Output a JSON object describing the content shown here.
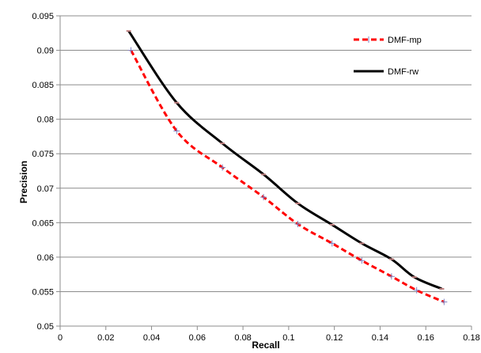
{
  "chart_data": {
    "type": "line",
    "title": "",
    "xlabel": "Recall",
    "ylabel": "Precision",
    "xlim": [
      0,
      0.18
    ],
    "ylim": [
      0.05,
      0.095
    ],
    "x_ticks": [
      0,
      0.02,
      0.04,
      0.06,
      0.08,
      0.1,
      0.12,
      0.14,
      0.16,
      0.18
    ],
    "x_tick_labels": [
      "0",
      "0.02",
      "0.04",
      "0.06",
      "0.08",
      "0.1",
      "0.12",
      "0.14",
      "0.16",
      "0.18"
    ],
    "y_ticks": [
      0.05,
      0.055,
      0.06,
      0.065,
      0.07,
      0.075,
      0.08,
      0.085,
      0.09,
      0.095
    ],
    "y_tick_labels": [
      "0.05",
      "0.055",
      "0.06",
      "0.065",
      "0.07",
      "0.075",
      "0.08",
      "0.085",
      "0.09",
      "0.095"
    ],
    "grid": "horizontal",
    "legend_position": "top-right",
    "series": [
      {
        "name": "DMF-mp",
        "color": "#ff0000",
        "style": "dashed",
        "marker": "cross",
        "x": [
          0.031,
          0.051,
          0.071,
          0.089,
          0.104,
          0.119,
          0.132,
          0.145,
          0.156,
          0.168
        ],
        "y": [
          0.09,
          0.0783,
          0.073,
          0.0687,
          0.0648,
          0.062,
          0.0595,
          0.0572,
          0.0552,
          0.0535
        ]
      },
      {
        "name": "DMF-rw",
        "color": "#000000",
        "style": "solid",
        "marker": "dash",
        "x": [
          0.03,
          0.051,
          0.071,
          0.089,
          0.104,
          0.119,
          0.132,
          0.145,
          0.155,
          0.167
        ],
        "y": [
          0.0928,
          0.0824,
          0.0765,
          0.072,
          0.0678,
          0.0647,
          0.062,
          0.0597,
          0.0571,
          0.0554
        ]
      }
    ]
  }
}
